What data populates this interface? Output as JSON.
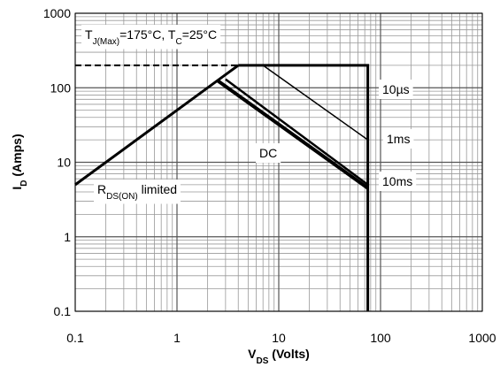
{
  "chart_data": {
    "type": "line",
    "log_x": true,
    "log_y": true,
    "grid": true,
    "xlim": [
      0.1,
      1000
    ],
    "ylim": [
      0.1,
      1000
    ],
    "xticks": [
      0.1,
      1,
      10,
      100,
      1000
    ],
    "yticks": [
      0.1,
      1,
      10,
      100,
      1000
    ],
    "xminor": [
      0.2,
      0.3,
      0.4,
      0.5,
      0.6,
      0.7,
      0.8,
      0.9,
      2,
      3,
      4,
      5,
      6,
      7,
      8,
      9,
      20,
      30,
      40,
      50,
      60,
      70,
      80,
      90,
      200,
      300,
      400,
      500,
      600,
      700,
      800,
      900
    ],
    "yminor": [
      0.2,
      0.3,
      0.4,
      0.5,
      0.6,
      0.7,
      0.8,
      0.9,
      2,
      3,
      4,
      5,
      6,
      7,
      8,
      9,
      20,
      30,
      40,
      50,
      60,
      70,
      80,
      90,
      200,
      300,
      400,
      500,
      600,
      700,
      800,
      900
    ],
    "xlabel": {
      "parts": [
        {
          "text": "V"
        },
        {
          "text": "DS",
          "sub": true
        },
        {
          "text": " (Volts)"
        }
      ]
    },
    "ylabel": {
      "parts": [
        {
          "text": "I"
        },
        {
          "text": "D",
          "sub": true
        },
        {
          "text": " (Amps)"
        }
      ]
    },
    "annotations": [
      {
        "parts": [
          {
            "text": "T"
          },
          {
            "text": "J(Max)",
            "sub": true
          },
          {
            "text": "=175°C, T"
          },
          {
            "text": "C",
            "sub": true
          },
          {
            "text": "=25°C"
          }
        ]
      },
      {
        "parts": [
          {
            "text": "R"
          },
          {
            "text": "DS(ON)",
            "sub": true
          },
          {
            "text": " limited"
          }
        ]
      }
    ],
    "limit_lines": [
      {
        "x": [
          0.1,
          4
        ],
        "y": [
          5,
          200
        ],
        "color": "#000000",
        "width": 3,
        "dash": false
      },
      {
        "x": [
          0.1,
          4
        ],
        "y": [
          200,
          200
        ],
        "color": "#000000",
        "width": 2,
        "dash": true
      }
    ],
    "series": [
      {
        "name": "10µs",
        "color": "#000000",
        "width": 3,
        "x": [
          4,
          75,
          75
        ],
        "y": [
          200,
          200,
          0.1
        ]
      },
      {
        "name": "1ms",
        "color": "#000000",
        "width": 1.5,
        "x": [
          7,
          75
        ],
        "y": [
          200,
          20
        ]
      },
      {
        "name": "DC",
        "color": "#000000",
        "width": 4,
        "x": [
          2.5,
          75
        ],
        "y": [
          125,
          4.5
        ]
      },
      {
        "name": "10ms",
        "color": "#000000",
        "width": 2.5,
        "x": [
          3,
          75
        ],
        "y": [
          130,
          5
        ]
      }
    ]
  }
}
